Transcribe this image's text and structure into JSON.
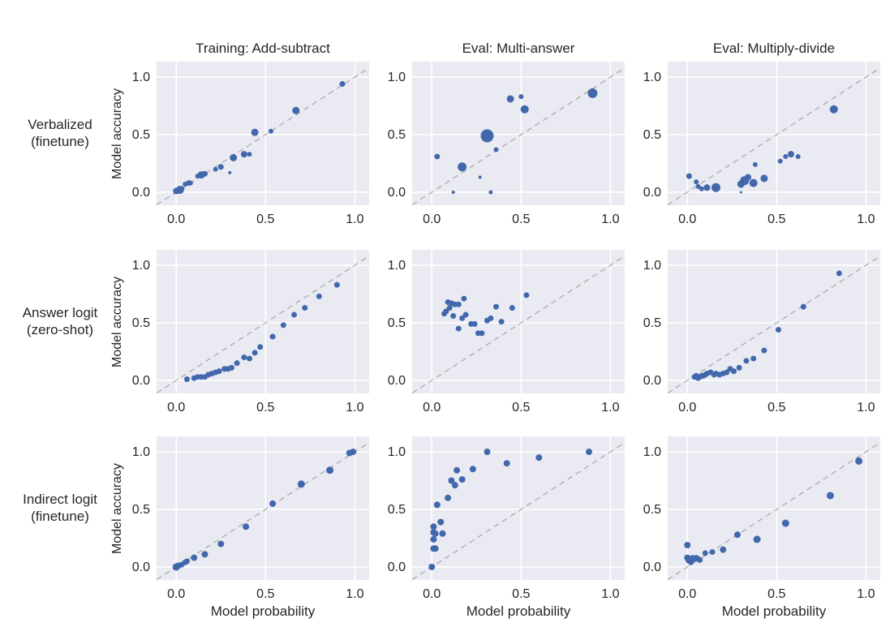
{
  "chart_data": {
    "type": "scatter",
    "title": "",
    "grid": {
      "rows": 3,
      "cols": 3
    },
    "col_titles": [
      "Training: Add-subtract",
      "Eval: Multi-answer",
      "Eval: Multiply-divide"
    ],
    "row_labels": [
      "Verbalized\n(finetune)",
      "Answer logit\n(zero-shot)",
      "Indirect logit\n(finetune)"
    ],
    "xlabel": "Model probability",
    "ylabel": "Model accuracy",
    "tick_values": [
      0.0,
      0.5,
      1.0
    ],
    "tick_labels": [
      "0.0",
      "0.5",
      "1.0"
    ],
    "xlim": [
      -0.11,
      1.08
    ],
    "ylim": [
      -0.113,
      1.134
    ],
    "grid_on": true,
    "legend": "none",
    "identity_line": {
      "shown": true,
      "style": "dashed",
      "color": "#b0b0b0"
    },
    "point_color": "#4268ac",
    "panel_bg": "#eaebf2",
    "grid_color": "#ffffff",
    "default_point_radius": 3.5,
    "subplots": [
      {
        "row": 0,
        "col": 0,
        "row_label": "Verbalized (finetune)",
        "col_title": "Training: Add-subtract",
        "points": [
          [
            0.0,
            0.01,
            4
          ],
          [
            0.02,
            0.02,
            5
          ],
          [
            0.03,
            0.03,
            3.5
          ],
          [
            0.05,
            0.07,
            3
          ],
          [
            0.07,
            0.08,
            3.5
          ],
          [
            0.08,
            0.08,
            3
          ],
          [
            0.12,
            0.14,
            3
          ],
          [
            0.14,
            0.15,
            4.5
          ],
          [
            0.16,
            0.16,
            3.5
          ],
          [
            0.22,
            0.2,
            3
          ],
          [
            0.25,
            0.22,
            3.5
          ],
          [
            0.3,
            0.17,
            2
          ],
          [
            0.32,
            0.3,
            4.5
          ],
          [
            0.38,
            0.33,
            4
          ],
          [
            0.41,
            0.33,
            3
          ],
          [
            0.44,
            0.52,
            4.5
          ],
          [
            0.53,
            0.53,
            3
          ],
          [
            0.67,
            0.71,
            4.5
          ],
          [
            0.93,
            0.94,
            3.5
          ]
        ]
      },
      {
        "row": 0,
        "col": 1,
        "row_label": "Verbalized (finetune)",
        "col_title": "Eval: Multi-answer",
        "points": [
          [
            0.12,
            0.0,
            2
          ],
          [
            0.33,
            0.0,
            2.5
          ],
          [
            0.27,
            0.13,
            2
          ],
          [
            0.17,
            0.22,
            5.5
          ],
          [
            0.03,
            0.31,
            3.5
          ],
          [
            0.36,
            0.37,
            3
          ],
          [
            0.31,
            0.49,
            8
          ],
          [
            0.52,
            0.72,
            5
          ],
          [
            0.44,
            0.81,
            4.5
          ],
          [
            0.5,
            0.83,
            3
          ],
          [
            0.9,
            0.86,
            6
          ]
        ]
      },
      {
        "row": 0,
        "col": 2,
        "row_label": "Verbalized (finetune)",
        "col_title": "Eval: Multiply-divide",
        "points": [
          [
            0.01,
            0.14,
            3.5
          ],
          [
            0.05,
            0.09,
            3
          ],
          [
            0.06,
            0.05,
            3
          ],
          [
            0.08,
            0.03,
            3
          ],
          [
            0.11,
            0.04,
            4
          ],
          [
            0.16,
            0.04,
            5.5
          ],
          [
            0.3,
            0.0,
            1.5
          ],
          [
            0.3,
            0.07,
            4.5
          ],
          [
            0.32,
            0.1,
            5.5
          ],
          [
            0.34,
            0.13,
            4
          ],
          [
            0.37,
            0.08,
            5
          ],
          [
            0.43,
            0.12,
            4.5
          ],
          [
            0.38,
            0.24,
            3
          ],
          [
            0.52,
            0.27,
            3
          ],
          [
            0.55,
            0.31,
            3
          ],
          [
            0.58,
            0.33,
            4
          ],
          [
            0.62,
            0.31,
            3
          ],
          [
            0.82,
            0.72,
            5
          ]
        ]
      },
      {
        "row": 1,
        "col": 0,
        "row_label": "Answer logit (zero-shot)",
        "col_title": "Training: Add-subtract",
        "points": [
          [
            0.06,
            0.01
          ],
          [
            0.1,
            0.02
          ],
          [
            0.12,
            0.03
          ],
          [
            0.14,
            0.03
          ],
          [
            0.16,
            0.03
          ],
          [
            0.18,
            0.05
          ],
          [
            0.2,
            0.06
          ],
          [
            0.22,
            0.07
          ],
          [
            0.24,
            0.08
          ],
          [
            0.27,
            0.1
          ],
          [
            0.29,
            0.1
          ],
          [
            0.31,
            0.11
          ],
          [
            0.34,
            0.15
          ],
          [
            0.38,
            0.2
          ],
          [
            0.41,
            0.19
          ],
          [
            0.44,
            0.24
          ],
          [
            0.47,
            0.29
          ],
          [
            0.54,
            0.38
          ],
          [
            0.6,
            0.48
          ],
          [
            0.66,
            0.57
          ],
          [
            0.72,
            0.63
          ],
          [
            0.8,
            0.73
          ],
          [
            0.9,
            0.83
          ]
        ]
      },
      {
        "row": 1,
        "col": 1,
        "row_label": "Answer logit (zero-shot)",
        "col_title": "Eval: Multi-answer",
        "points": [
          [
            0.07,
            0.58
          ],
          [
            0.08,
            0.6
          ],
          [
            0.09,
            0.68
          ],
          [
            0.1,
            0.63
          ],
          [
            0.11,
            0.67
          ],
          [
            0.12,
            0.56
          ],
          [
            0.13,
            0.66
          ],
          [
            0.15,
            0.66
          ],
          [
            0.15,
            0.45
          ],
          [
            0.17,
            0.54
          ],
          [
            0.18,
            0.71
          ],
          [
            0.19,
            0.57
          ],
          [
            0.22,
            0.49
          ],
          [
            0.24,
            0.49
          ],
          [
            0.26,
            0.41
          ],
          [
            0.28,
            0.41
          ],
          [
            0.31,
            0.52
          ],
          [
            0.33,
            0.54
          ],
          [
            0.36,
            0.64
          ],
          [
            0.39,
            0.51
          ],
          [
            0.45,
            0.63
          ],
          [
            0.53,
            0.74
          ]
        ]
      },
      {
        "row": 1,
        "col": 2,
        "row_label": "Answer logit (zero-shot)",
        "col_title": "Eval: Multiply-divide",
        "points": [
          [
            0.04,
            0.03
          ],
          [
            0.05,
            0.04
          ],
          [
            0.06,
            0.02
          ],
          [
            0.07,
            0.03
          ],
          [
            0.08,
            0.04
          ],
          [
            0.09,
            0.04
          ],
          [
            0.1,
            0.05
          ],
          [
            0.11,
            0.06
          ],
          [
            0.13,
            0.07
          ],
          [
            0.15,
            0.05
          ],
          [
            0.16,
            0.06
          ],
          [
            0.18,
            0.05
          ],
          [
            0.2,
            0.06
          ],
          [
            0.22,
            0.07
          ],
          [
            0.24,
            0.1
          ],
          [
            0.26,
            0.08
          ],
          [
            0.29,
            0.11
          ],
          [
            0.33,
            0.17
          ],
          [
            0.37,
            0.19
          ],
          [
            0.43,
            0.26
          ],
          [
            0.51,
            0.44
          ],
          [
            0.65,
            0.64
          ],
          [
            0.85,
            0.93
          ]
        ]
      },
      {
        "row": 2,
        "col": 0,
        "row_label": "Indirect logit (finetune)",
        "col_title": "Training: Add-subtract",
        "points": [
          [
            0.0,
            0.0,
            4.5
          ],
          [
            0.01,
            0.01,
            4
          ],
          [
            0.03,
            0.02,
            3.5
          ],
          [
            0.05,
            0.04,
            3.5
          ],
          [
            0.06,
            0.05,
            3.5
          ],
          [
            0.1,
            0.08,
            4
          ],
          [
            0.16,
            0.11,
            4
          ],
          [
            0.25,
            0.2,
            4
          ],
          [
            0.39,
            0.35,
            4
          ],
          [
            0.54,
            0.55,
            4
          ],
          [
            0.7,
            0.72,
            4.5
          ],
          [
            0.86,
            0.84,
            4.5
          ],
          [
            0.97,
            0.99,
            4
          ],
          [
            0.99,
            1.0,
            4
          ]
        ]
      },
      {
        "row": 2,
        "col": 1,
        "row_label": "Indirect logit (finetune)",
        "col_title": "Eval: Multi-answer",
        "points": [
          [
            0.0,
            0.0,
            4
          ],
          [
            0.01,
            0.16,
            4
          ],
          [
            0.02,
            0.16,
            4
          ],
          [
            0.01,
            0.24,
            4
          ],
          [
            0.01,
            0.3,
            4
          ],
          [
            0.02,
            0.29,
            4
          ],
          [
            0.06,
            0.29,
            4
          ],
          [
            0.01,
            0.35,
            4
          ],
          [
            0.05,
            0.39,
            4
          ],
          [
            0.03,
            0.54,
            4
          ],
          [
            0.09,
            0.6,
            4
          ],
          [
            0.13,
            0.71,
            4
          ],
          [
            0.11,
            0.75,
            4
          ],
          [
            0.17,
            0.76,
            4
          ],
          [
            0.14,
            0.84,
            4
          ],
          [
            0.23,
            0.85,
            4
          ],
          [
            0.42,
            0.9,
            4
          ],
          [
            0.31,
            1.0,
            4
          ],
          [
            0.6,
            0.95,
            4
          ],
          [
            0.88,
            1.0,
            4
          ]
        ]
      },
      {
        "row": 2,
        "col": 2,
        "row_label": "Indirect logit (finetune)",
        "col_title": "Eval: Multiply-divide",
        "points": [
          [
            0.0,
            0.19,
            4
          ],
          [
            0.0,
            0.08,
            4
          ],
          [
            0.01,
            0.06,
            4.5
          ],
          [
            0.02,
            0.05,
            4
          ],
          [
            0.02,
            0.04,
            3.5
          ],
          [
            0.03,
            0.08,
            3.5
          ],
          [
            0.04,
            0.07,
            3.5
          ],
          [
            0.05,
            0.08,
            3.5
          ],
          [
            0.06,
            0.07,
            3.5
          ],
          [
            0.07,
            0.06,
            3.5
          ],
          [
            0.1,
            0.12,
            3.5
          ],
          [
            0.14,
            0.13,
            3.5
          ],
          [
            0.2,
            0.15,
            4
          ],
          [
            0.28,
            0.28,
            4
          ],
          [
            0.39,
            0.24,
            4.5
          ],
          [
            0.55,
            0.38,
            4.5
          ],
          [
            0.8,
            0.62,
            4.5
          ],
          [
            0.96,
            0.92,
            4.5
          ]
        ]
      }
    ]
  },
  "layout_text": {
    "ylabel_row0": "Model accuracy",
    "ylabel_row1": "Model accuracy",
    "ylabel_row2": "Model accuracy",
    "xlabel_col0": "Model probability",
    "xlabel_col1": "Model probability",
    "xlabel_col2": "Model probability"
  }
}
